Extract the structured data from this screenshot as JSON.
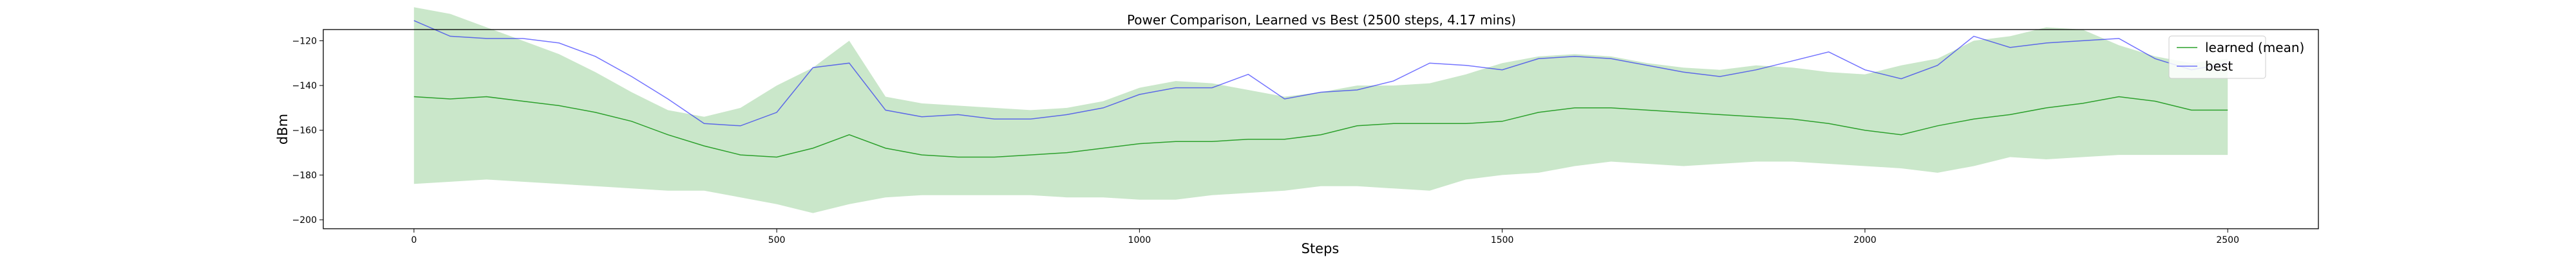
{
  "chart_data": {
    "type": "line",
    "title": "Power Comparison, Learned vs Best (2500 steps, 4.17 mins)",
    "xlabel": "Steps",
    "ylabel": "dBm",
    "xlim": [
      -125,
      2625
    ],
    "ylim": [
      -204,
      -115
    ],
    "xticks": [
      0,
      500,
      1000,
      1500,
      2000,
      2500
    ],
    "yticks": [
      -200,
      -180,
      -160,
      -140,
      -120
    ],
    "grid": false,
    "legend_position": "top-right",
    "colors": {
      "learned_line": "#2ca02c",
      "band_fill": "#2ca02c",
      "band_alpha": 0.25,
      "best_line": "#0000ff",
      "best_alpha": 0.55,
      "axes": "#000000"
    },
    "x": [
      0,
      50,
      100,
      150,
      200,
      250,
      300,
      350,
      400,
      450,
      500,
      550,
      600,
      650,
      700,
      750,
      800,
      850,
      900,
      950,
      1000,
      1050,
      1100,
      1150,
      1200,
      1250,
      1300,
      1350,
      1400,
      1450,
      1500,
      1550,
      1600,
      1650,
      1700,
      1750,
      1800,
      1850,
      1900,
      1950,
      2000,
      2050,
      2100,
      2150,
      2200,
      2250,
      2300,
      2350,
      2400,
      2450,
      2500
    ],
    "series": [
      {
        "name": "learned (mean)",
        "kind": "line",
        "values": [
          -145,
          -146,
          -145,
          -147,
          -149,
          -152,
          -156,
          -162,
          -167,
          -171,
          -172,
          -168,
          -162,
          -168,
          -171,
          -172,
          -172,
          -171,
          -170,
          -168,
          -166,
          -165,
          -165,
          -164,
          -164,
          -162,
          -158,
          -157,
          -157,
          -157,
          -156,
          -152,
          -150,
          -150,
          -151,
          -152,
          -153,
          -154,
          -155,
          -157,
          -160,
          -162,
          -158,
          -155,
          -153,
          -150,
          -148,
          -145,
          -147,
          -151,
          -151
        ]
      },
      {
        "name": "",
        "kind": "band_upper",
        "values": [
          -105,
          -108,
          -114,
          -120,
          -126,
          -134,
          -143,
          -151,
          -154,
          -150,
          -140,
          -132,
          -120,
          -145,
          -148,
          -149,
          -150,
          -151,
          -150,
          -147,
          -141,
          -138,
          -139,
          -142,
          -145,
          -143,
          -140,
          -140,
          -139,
          -135,
          -130,
          -127,
          -126,
          -127,
          -130,
          -132,
          -133,
          -131,
          -132,
          -134,
          -135,
          -131,
          -128,
          -120,
          -118,
          -114,
          -115,
          -122,
          -127,
          -130,
          -128
        ]
      },
      {
        "name": "",
        "kind": "band_lower",
        "values": [
          -184,
          -183,
          -182,
          -183,
          -184,
          -185,
          -186,
          -187,
          -187,
          -190,
          -193,
          -197,
          -193,
          -190,
          -189,
          -189,
          -189,
          -189,
          -190,
          -190,
          -191,
          -191,
          -189,
          -188,
          -187,
          -185,
          -185,
          -186,
          -187,
          -182,
          -180,
          -179,
          -176,
          -174,
          -175,
          -176,
          -175,
          -174,
          -174,
          -175,
          -176,
          -177,
          -179,
          -176,
          -172,
          -173,
          -172,
          -171,
          -171,
          -171,
          -171
        ]
      },
      {
        "name": "best",
        "kind": "line",
        "values": [
          -111,
          -118,
          -119,
          -119,
          -121,
          -127,
          -136,
          -146,
          -157,
          -158,
          -152,
          -132,
          -130,
          -151,
          -154,
          -153,
          -155,
          -155,
          -153,
          -150,
          -144,
          -141,
          -141,
          -135,
          -146,
          -143,
          -142,
          -138,
          -130,
          -131,
          -133,
          -128,
          -127,
          -128,
          -131,
          -134,
          -136,
          -133,
          -129,
          -125,
          -133,
          -137,
          -131,
          -118,
          -123,
          -121,
          -120,
          -119,
          -128,
          -133,
          -130
        ]
      }
    ]
  }
}
